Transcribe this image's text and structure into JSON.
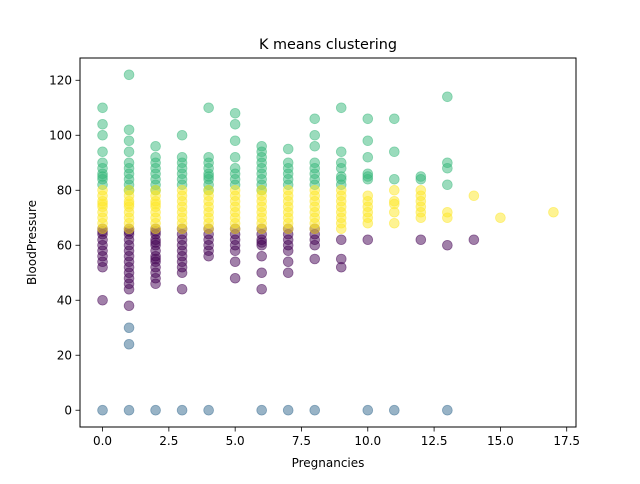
{
  "chart_data": {
    "type": "scatter",
    "title": "K means clustering",
    "xlabel": "Pregnancies",
    "ylabel": "BloodPressure",
    "xlim": [
      -0.85,
      17.85
    ],
    "ylim": [
      -6.1,
      128.1
    ],
    "x_ticks": [
      0.0,
      2.5,
      5.0,
      7.5,
      10.0,
      12.5,
      15.0,
      17.5
    ],
    "x_tick_labels": [
      "0.0",
      "2.5",
      "5.0",
      "7.5",
      "10.0",
      "12.5",
      "15.0",
      "17.5"
    ],
    "y_ticks": [
      0,
      20,
      40,
      60,
      80,
      100,
      120
    ],
    "y_tick_labels": [
      "0",
      "20",
      "40",
      "60",
      "80",
      "100",
      "120"
    ],
    "grid": false,
    "legend": false,
    "marker_alpha": 0.5,
    "series": [
      {
        "color": "#440154",
        "points": [
          [
            0,
            40
          ],
          [
            0,
            52
          ],
          [
            0,
            54
          ],
          [
            0,
            56
          ],
          [
            0,
            58
          ],
          [
            0,
            60
          ],
          [
            0,
            62
          ],
          [
            0,
            64
          ],
          [
            0,
            65
          ],
          [
            0,
            66
          ],
          [
            1,
            38
          ],
          [
            1,
            44
          ],
          [
            1,
            46
          ],
          [
            1,
            48
          ],
          [
            1,
            50
          ],
          [
            1,
            52
          ],
          [
            1,
            54
          ],
          [
            1,
            56
          ],
          [
            1,
            58
          ],
          [
            1,
            60
          ],
          [
            1,
            62
          ],
          [
            1,
            64
          ],
          [
            1,
            65
          ],
          [
            1,
            66
          ],
          [
            2,
            46
          ],
          [
            2,
            48
          ],
          [
            2,
            50
          ],
          [
            2,
            52
          ],
          [
            2,
            54
          ],
          [
            2,
            55
          ],
          [
            2,
            56
          ],
          [
            2,
            58
          ],
          [
            2,
            60
          ],
          [
            2,
            61
          ],
          [
            2,
            62
          ],
          [
            2,
            64
          ],
          [
            2,
            65
          ],
          [
            2,
            66
          ],
          [
            3,
            44
          ],
          [
            3,
            50
          ],
          [
            3,
            52
          ],
          [
            3,
            54
          ],
          [
            3,
            56
          ],
          [
            3,
            58
          ],
          [
            3,
            60
          ],
          [
            3,
            62
          ],
          [
            3,
            64
          ],
          [
            3,
            66
          ],
          [
            4,
            56
          ],
          [
            4,
            58
          ],
          [
            4,
            60
          ],
          [
            4,
            62
          ],
          [
            4,
            64
          ],
          [
            4,
            66
          ],
          [
            5,
            48
          ],
          [
            5,
            54
          ],
          [
            5,
            58
          ],
          [
            5,
            60
          ],
          [
            5,
            62
          ],
          [
            5,
            64
          ],
          [
            5,
            66
          ],
          [
            6,
            44
          ],
          [
            6,
            50
          ],
          [
            6,
            56
          ],
          [
            6,
            60
          ],
          [
            6,
            61
          ],
          [
            6,
            62
          ],
          [
            6,
            64
          ],
          [
            6,
            66
          ],
          [
            7,
            50
          ],
          [
            7,
            54
          ],
          [
            7,
            58
          ],
          [
            7,
            60
          ],
          [
            7,
            62
          ],
          [
            7,
            64
          ],
          [
            7,
            66
          ],
          [
            8,
            55
          ],
          [
            8,
            60
          ],
          [
            8,
            62
          ],
          [
            8,
            64
          ],
          [
            8,
            66
          ],
          [
            9,
            52
          ],
          [
            9,
            55
          ],
          [
            9,
            62
          ],
          [
            10,
            62
          ],
          [
            12,
            62
          ],
          [
            13,
            60
          ],
          [
            14,
            62
          ]
        ]
      },
      {
        "color": "#31688e",
        "points": [
          [
            0,
            0
          ],
          [
            1,
            0
          ],
          [
            1,
            24
          ],
          [
            1,
            30
          ],
          [
            2,
            0
          ],
          [
            3,
            0
          ],
          [
            4,
            0
          ],
          [
            6,
            0
          ],
          [
            7,
            0
          ],
          [
            8,
            0
          ],
          [
            10,
            0
          ],
          [
            11,
            0
          ],
          [
            13,
            0
          ]
        ]
      },
      {
        "color": "#35b779",
        "points": [
          [
            0,
            82
          ],
          [
            0,
            84
          ],
          [
            0,
            85
          ],
          [
            0,
            86
          ],
          [
            0,
            88
          ],
          [
            0,
            90
          ],
          [
            0,
            94
          ],
          [
            0,
            100
          ],
          [
            0,
            104
          ],
          [
            0,
            110
          ],
          [
            1,
            80
          ],
          [
            1,
            82
          ],
          [
            1,
            84
          ],
          [
            1,
            86
          ],
          [
            1,
            88
          ],
          [
            1,
            90
          ],
          [
            1,
            94
          ],
          [
            1,
            98
          ],
          [
            1,
            102
          ],
          [
            1,
            122
          ],
          [
            2,
            80
          ],
          [
            2,
            82
          ],
          [
            2,
            84
          ],
          [
            2,
            86
          ],
          [
            2,
            88
          ],
          [
            2,
            90
          ],
          [
            2,
            92
          ],
          [
            2,
            96
          ],
          [
            3,
            82
          ],
          [
            3,
            84
          ],
          [
            3,
            86
          ],
          [
            3,
            88
          ],
          [
            3,
            90
          ],
          [
            3,
            92
          ],
          [
            3,
            100
          ],
          [
            4,
            80
          ],
          [
            4,
            82
          ],
          [
            4,
            84
          ],
          [
            4,
            85
          ],
          [
            4,
            86
          ],
          [
            4,
            88
          ],
          [
            4,
            90
          ],
          [
            4,
            92
          ],
          [
            4,
            110
          ],
          [
            5,
            82
          ],
          [
            5,
            84
          ],
          [
            5,
            86
          ],
          [
            5,
            88
          ],
          [
            5,
            92
          ],
          [
            5,
            98
          ],
          [
            5,
            104
          ],
          [
            5,
            108
          ],
          [
            6,
            80
          ],
          [
            6,
            82
          ],
          [
            6,
            84
          ],
          [
            6,
            86
          ],
          [
            6,
            88
          ],
          [
            6,
            90
          ],
          [
            6,
            92
          ],
          [
            6,
            94
          ],
          [
            6,
            96
          ],
          [
            7,
            82
          ],
          [
            7,
            84
          ],
          [
            7,
            86
          ],
          [
            7,
            88
          ],
          [
            7,
            90
          ],
          [
            7,
            95
          ],
          [
            8,
            82
          ],
          [
            8,
            84
          ],
          [
            8,
            86
          ],
          [
            8,
            88
          ],
          [
            8,
            90
          ],
          [
            8,
            96
          ],
          [
            8,
            100
          ],
          [
            8,
            106
          ],
          [
            9,
            82
          ],
          [
            9,
            84
          ],
          [
            9,
            85
          ],
          [
            9,
            88
          ],
          [
            9,
            90
          ],
          [
            9,
            94
          ],
          [
            9,
            110
          ],
          [
            10,
            84
          ],
          [
            10,
            85
          ],
          [
            10,
            86
          ],
          [
            10,
            92
          ],
          [
            10,
            98
          ],
          [
            10,
            106
          ],
          [
            11,
            84
          ],
          [
            11,
            94
          ],
          [
            11,
            106
          ],
          [
            12,
            84
          ],
          [
            12,
            85
          ],
          [
            13,
            82
          ],
          [
            13,
            88
          ],
          [
            13,
            90
          ],
          [
            13,
            114
          ]
        ]
      },
      {
        "color": "#fde725",
        "points": [
          [
            0,
            66
          ],
          [
            0,
            68
          ],
          [
            0,
            70
          ],
          [
            0,
            72
          ],
          [
            0,
            74
          ],
          [
            0,
            75
          ],
          [
            0,
            76
          ],
          [
            0,
            78
          ],
          [
            0,
            80
          ],
          [
            1,
            66
          ],
          [
            1,
            68
          ],
          [
            1,
            70
          ],
          [
            1,
            72
          ],
          [
            1,
            74
          ],
          [
            1,
            75
          ],
          [
            1,
            76
          ],
          [
            1,
            78
          ],
          [
            1,
            80
          ],
          [
            2,
            66
          ],
          [
            2,
            68
          ],
          [
            2,
            70
          ],
          [
            2,
            72
          ],
          [
            2,
            74
          ],
          [
            2,
            75
          ],
          [
            2,
            76
          ],
          [
            2,
            78
          ],
          [
            2,
            80
          ],
          [
            3,
            66
          ],
          [
            3,
            68
          ],
          [
            3,
            70
          ],
          [
            3,
            72
          ],
          [
            3,
            74
          ],
          [
            3,
            76
          ],
          [
            3,
            78
          ],
          [
            3,
            80
          ],
          [
            4,
            66
          ],
          [
            4,
            68
          ],
          [
            4,
            70
          ],
          [
            4,
            72
          ],
          [
            4,
            74
          ],
          [
            4,
            76
          ],
          [
            4,
            78
          ],
          [
            4,
            80
          ],
          [
            5,
            66
          ],
          [
            5,
            68
          ],
          [
            5,
            70
          ],
          [
            5,
            72
          ],
          [
            5,
            74
          ],
          [
            5,
            76
          ],
          [
            5,
            78
          ],
          [
            5,
            80
          ],
          [
            6,
            66
          ],
          [
            6,
            68
          ],
          [
            6,
            70
          ],
          [
            6,
            72
          ],
          [
            6,
            74
          ],
          [
            6,
            76
          ],
          [
            6,
            78
          ],
          [
            6,
            80
          ],
          [
            7,
            66
          ],
          [
            7,
            68
          ],
          [
            7,
            70
          ],
          [
            7,
            72
          ],
          [
            7,
            74
          ],
          [
            7,
            76
          ],
          [
            7,
            78
          ],
          [
            7,
            80
          ],
          [
            8,
            66
          ],
          [
            8,
            68
          ],
          [
            8,
            70
          ],
          [
            8,
            72
          ],
          [
            8,
            74
          ],
          [
            8,
            76
          ],
          [
            8,
            78
          ],
          [
            8,
            80
          ],
          [
            9,
            66
          ],
          [
            9,
            68
          ],
          [
            9,
            70
          ],
          [
            9,
            72
          ],
          [
            9,
            74
          ],
          [
            9,
            76
          ],
          [
            9,
            78
          ],
          [
            9,
            80
          ],
          [
            10,
            68
          ],
          [
            10,
            70
          ],
          [
            10,
            72
          ],
          [
            10,
            74
          ],
          [
            10,
            76
          ],
          [
            10,
            78
          ],
          [
            11,
            68
          ],
          [
            11,
            72
          ],
          [
            11,
            75
          ],
          [
            11,
            76
          ],
          [
            11,
            80
          ],
          [
            12,
            70
          ],
          [
            12,
            72
          ],
          [
            12,
            74
          ],
          [
            12,
            76
          ],
          [
            12,
            78
          ],
          [
            12,
            80
          ],
          [
            13,
            70
          ],
          [
            13,
            72
          ],
          [
            14,
            78
          ],
          [
            15,
            70
          ],
          [
            17,
            72
          ]
        ]
      }
    ]
  }
}
